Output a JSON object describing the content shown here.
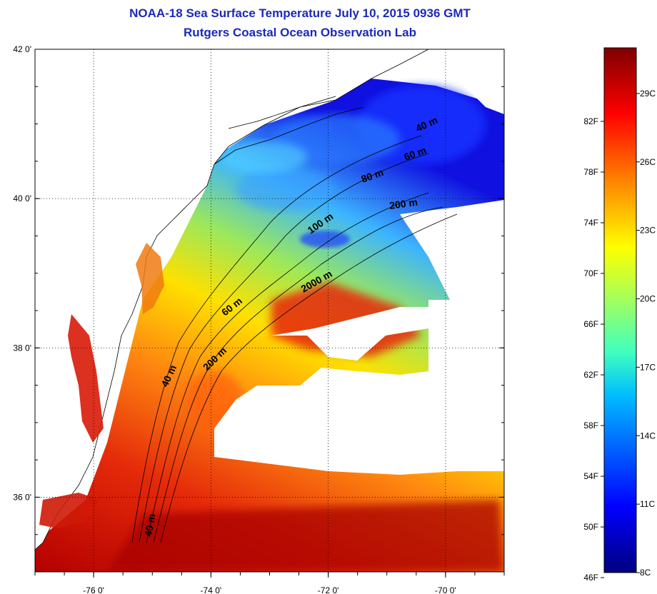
{
  "title": "NOAA-18 Sea Surface Temperature July 10, 2015 0936 GMT",
  "subtitle": "Rutgers Coastal Ocean Observation Lab",
  "map": {
    "lat_range": [
      35.0,
      42.0
    ],
    "lon_range": [
      -77.0,
      -69.0
    ],
    "grid": true,
    "y_ticks": [
      {
        "value": 42,
        "label": "42 0'"
      },
      {
        "value": 40,
        "label": "40 0'"
      },
      {
        "value": 38,
        "label": "38 0'"
      },
      {
        "value": 36,
        "label": "36 0'"
      }
    ],
    "x_ticks": [
      {
        "value": -76,
        "label": "-76 0'"
      },
      {
        "value": -74,
        "label": "-74 0'"
      },
      {
        "value": -72,
        "label": "-72 0'"
      },
      {
        "value": -70,
        "label": "-70 0'"
      }
    ],
    "contour_labels": [
      "40 m",
      "40 m",
      "60 m",
      "200 m",
      "2000 m",
      "100 m",
      "200 m",
      "80 m",
      "60 m",
      "40 m"
    ],
    "land_color": "#ffffff",
    "no_data_color": "#ffffff"
  },
  "colorbar": {
    "range_c": [
      8,
      31
    ],
    "fahrenheit_labels": [
      "82F",
      "78F",
      "74F",
      "70F",
      "66F",
      "62F",
      "58F",
      "54F",
      "50F",
      "46F"
    ],
    "celsius_labels": [
      "29C",
      "26C",
      "23C",
      "20C",
      "17C",
      "14C",
      "11C",
      "8C"
    ],
    "colormap": "jet",
    "colors": [
      "#00007f",
      "#0000ff",
      "#007fff",
      "#00ffff",
      "#7fff7f",
      "#ffff00",
      "#ff7f00",
      "#ff0000",
      "#7f0000"
    ]
  }
}
